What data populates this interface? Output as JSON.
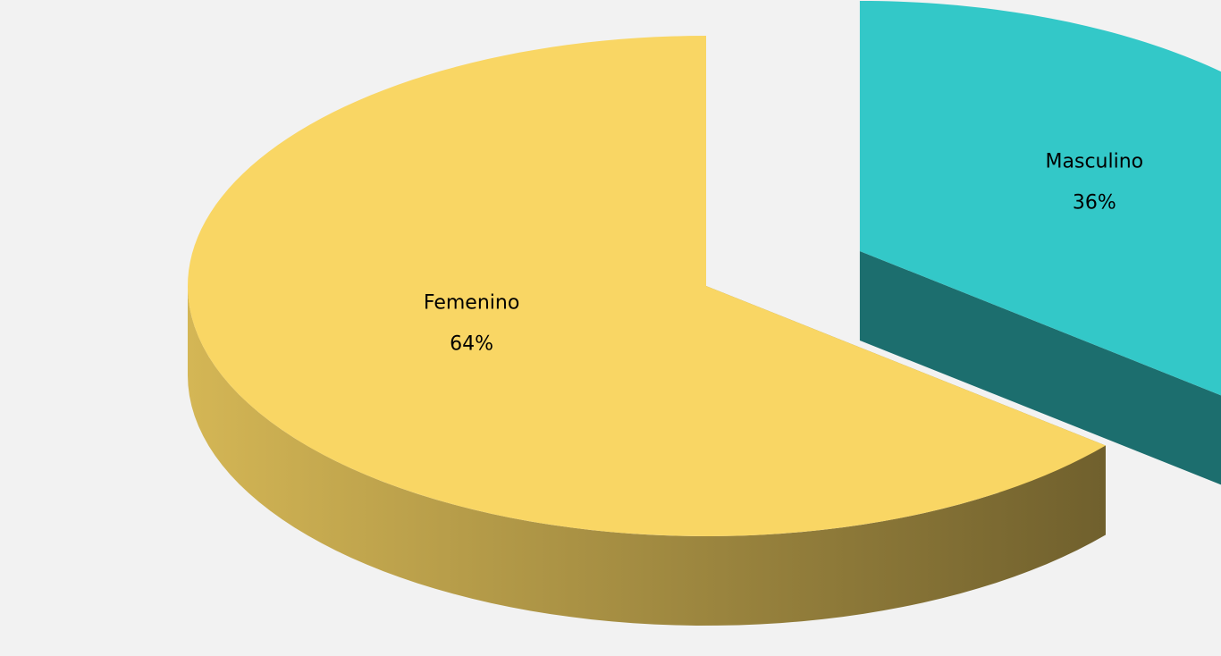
{
  "chart_data": {
    "type": "pie",
    "categories": [
      "Masculino",
      "Femenino"
    ],
    "values": [
      36,
      64
    ],
    "value_labels": [
      "36%",
      "64%"
    ],
    "colors": [
      "#33c8c8",
      "#f9d664"
    ]
  }
}
